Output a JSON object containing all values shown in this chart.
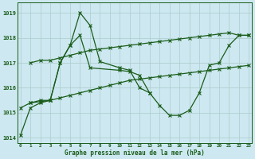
{
  "xlabel": "Graphe pression niveau de la mer (hPa)",
  "bg_color": "#cde8f0",
  "grid_color": "#aacccc",
  "line_color": "#1a5c1a",
  "ylim": [
    1013.8,
    1019.4
  ],
  "yticks": [
    1014,
    1015,
    1016,
    1017,
    1018,
    1019
  ],
  "xticks": [
    0,
    1,
    2,
    3,
    4,
    5,
    6,
    7,
    8,
    9,
    10,
    11,
    12,
    13,
    14,
    15,
    16,
    17,
    18,
    19,
    20,
    21,
    22,
    23
  ],
  "lines": [
    {
      "x": [
        0,
        1,
        2,
        3,
        4,
        5,
        6,
        7,
        8,
        10,
        11,
        12,
        13
      ],
      "y": [
        1015.2,
        1015.4,
        1015.5,
        1015.5,
        1017.0,
        1017.7,
        1019.0,
        1018.5,
        1017.05,
        1016.8,
        1016.7,
        1016.0,
        1015.8
      ]
    },
    {
      "x": [
        1,
        2,
        3,
        4,
        5,
        6,
        7,
        8,
        9,
        10,
        11,
        12,
        13,
        14,
        15,
        16,
        17,
        18,
        19,
        20,
        21,
        22,
        23
      ],
      "y": [
        1017.0,
        1017.1,
        1017.1,
        1017.2,
        1017.3,
        1017.4,
        1017.5,
        1017.55,
        1017.6,
        1017.65,
        1017.7,
        1017.75,
        1017.8,
        1017.85,
        1017.9,
        1017.95,
        1018.0,
        1018.05,
        1018.1,
        1018.15,
        1018.2,
        1018.1,
        1018.1
      ]
    },
    {
      "x": [
        1,
        2,
        3,
        4,
        5,
        6,
        7,
        8,
        9,
        10,
        11,
        12,
        13,
        14,
        15,
        16,
        17,
        18,
        19,
        20,
        21,
        22,
        23
      ],
      "y": [
        1015.4,
        1015.45,
        1015.5,
        1015.6,
        1015.7,
        1015.8,
        1015.9,
        1016.0,
        1016.1,
        1016.2,
        1016.3,
        1016.35,
        1016.4,
        1016.45,
        1016.5,
        1016.55,
        1016.6,
        1016.65,
        1016.7,
        1016.75,
        1016.8,
        1016.85,
        1016.9
      ]
    },
    {
      "x": [
        0,
        1,
        2,
        3,
        4,
        5,
        6,
        7,
        10,
        11,
        12,
        13,
        14,
        15,
        16,
        17,
        18,
        19,
        20,
        21,
        22,
        23
      ],
      "y": [
        1014.1,
        1015.2,
        1015.4,
        1015.5,
        1017.0,
        1017.7,
        1018.1,
        1016.8,
        1016.7,
        1016.65,
        1016.5,
        1015.8,
        1015.3,
        1014.9,
        1014.9,
        1015.1,
        1015.8,
        1016.9,
        1017.0,
        1017.7,
        1018.1,
        1018.1
      ]
    }
  ]
}
